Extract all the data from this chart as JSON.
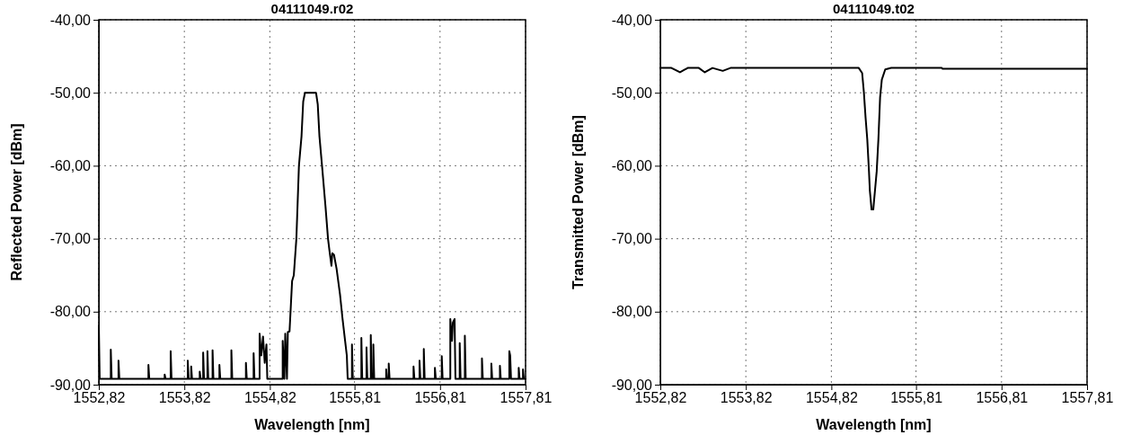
{
  "chart_data": [
    {
      "type": "line",
      "title": "04111049.r02",
      "xlabel": "Wavelength [nm]",
      "ylabel": "Reflected Power [dBm]",
      "color": "#000000",
      "grid": true,
      "xlim": [
        1552.82,
        1557.81
      ],
      "ylim": [
        -90,
        -40
      ],
      "xticks": [
        {
          "value": 1552.82,
          "label": "1552,82"
        },
        {
          "value": 1553.82,
          "label": "1553,82"
        },
        {
          "value": 1554.82,
          "label": "1554,82"
        },
        {
          "value": 1555.81,
          "label": "1555,81"
        },
        {
          "value": 1556.81,
          "label": "1556,81"
        },
        {
          "value": 1557.81,
          "label": "1557,81"
        }
      ],
      "yticks": [
        {
          "value": -90,
          "label": "-90,00"
        },
        {
          "value": -80,
          "label": "-80,00"
        },
        {
          "value": -70,
          "label": "-70,00"
        },
        {
          "value": -60,
          "label": "-60,00"
        },
        {
          "value": -50,
          "label": "-50,00"
        },
        {
          "value": -40,
          "label": "-40,00"
        }
      ],
      "x": [
        1552.82,
        1552.83,
        1552.96,
        1552.96,
        1552.97,
        1553.05,
        1553.05,
        1553.06,
        1553.4,
        1553.4,
        1553.41,
        1553.59,
        1553.59,
        1553.6,
        1553.66,
        1553.66,
        1553.67,
        1553.86,
        1553.86,
        1553.87,
        1553.9,
        1553.9,
        1553.91,
        1554.0,
        1554.0,
        1554.01,
        1554.04,
        1554.04,
        1554.05,
        1554.09,
        1554.09,
        1554.1,
        1554.15,
        1554.15,
        1554.16,
        1554.23,
        1554.23,
        1554.24,
        1554.37,
        1554.37,
        1554.38,
        1554.54,
        1554.54,
        1554.55,
        1554.63,
        1554.63,
        1554.64,
        1554.7,
        1554.7,
        1554.72,
        1554.74,
        1554.76,
        1554.78,
        1554.79,
        1554.97,
        1554.97,
        1554.99,
        1555.0,
        1555.02,
        1555.03,
        1555.05,
        1555.08,
        1555.1,
        1555.13,
        1555.16,
        1555.19,
        1555.21,
        1555.23,
        1555.36,
        1555.38,
        1555.4,
        1555.43,
        1555.47,
        1555.5,
        1555.52,
        1555.54,
        1555.55,
        1555.57,
        1555.6,
        1555.64,
        1555.67,
        1555.7,
        1555.72,
        1555.73,
        1555.78,
        1555.78,
        1555.79,
        1555.89,
        1555.89,
        1555.9,
        1555.95,
        1555.95,
        1555.96,
        1556.0,
        1556.0,
        1556.01,
        1556.03,
        1556.03,
        1556.04,
        1556.18,
        1556.18,
        1556.19,
        1556.21,
        1556.21,
        1556.22,
        1556.5,
        1556.5,
        1556.51,
        1556.57,
        1556.57,
        1556.58,
        1556.62,
        1556.62,
        1556.63,
        1556.75,
        1556.75,
        1556.76,
        1556.83,
        1556.83,
        1556.84,
        1556.93,
        1556.93,
        1556.95,
        1556.96,
        1556.98,
        1556.99,
        1557.04,
        1557.04,
        1557.05,
        1557.1,
        1557.1,
        1557.11,
        1557.3,
        1557.3,
        1557.31,
        1557.41,
        1557.41,
        1557.42,
        1557.51,
        1557.51,
        1557.52,
        1557.62,
        1557.62,
        1557.63,
        1557.64,
        1557.73,
        1557.73,
        1557.74,
        1557.78,
        1557.78,
        1557.79,
        1557.81
      ],
      "values": [
        -81.9,
        -89.2,
        -89.2,
        -85.2,
        -89.2,
        -89.2,
        -86.7,
        -89.2,
        -89.2,
        -87.3,
        -89.2,
        -89.2,
        -88.6,
        -89.2,
        -89.2,
        -85.4,
        -89.2,
        -89.2,
        -86.7,
        -89.2,
        -89.2,
        -87.5,
        -89.2,
        -89.2,
        -88.2,
        -89.2,
        -89.2,
        -85.6,
        -89.2,
        -89.2,
        -85.4,
        -89.2,
        -89.2,
        -85.3,
        -89.2,
        -89.2,
        -87.3,
        -89.2,
        -89.2,
        -85.3,
        -89.2,
        -89.2,
        -87.0,
        -89.2,
        -89.2,
        -85.7,
        -89.2,
        -89.2,
        -83.0,
        -86.0,
        -83.4,
        -87.0,
        -84.5,
        -89.2,
        -89.2,
        -84.0,
        -89.2,
        -83.0,
        -89.2,
        -82.8,
        -82.7,
        -75.8,
        -75.0,
        -70.0,
        -60.0,
        -56.0,
        -51.2,
        -50.0,
        -50.0,
        -51.6,
        -56.0,
        -60.0,
        -65.5,
        -70.0,
        -71.9,
        -73.7,
        -72.0,
        -72.2,
        -74.1,
        -77.6,
        -81.0,
        -84.0,
        -86.0,
        -89.2,
        -89.2,
        -84.5,
        -89.2,
        -89.2,
        -83.6,
        -89.2,
        -89.2,
        -84.9,
        -89.2,
        -89.2,
        -83.2,
        -89.2,
        -89.2,
        -84.5,
        -89.2,
        -89.2,
        -87.9,
        -89.2,
        -89.2,
        -87.1,
        -89.2,
        -89.2,
        -87.5,
        -89.2,
        -89.2,
        -86.7,
        -89.2,
        -89.2,
        -85.1,
        -89.2,
        -89.2,
        -87.7,
        -89.2,
        -89.2,
        -86.1,
        -89.2,
        -89.2,
        -81.0,
        -84.0,
        -81.5,
        -81.0,
        -89.2,
        -89.2,
        -84.3,
        -89.2,
        -89.2,
        -83.3,
        -89.2,
        -89.2,
        -86.4,
        -89.2,
        -89.2,
        -87.1,
        -89.2,
        -89.2,
        -87.4,
        -89.2,
        -89.2,
        -85.4,
        -86.0,
        -89.2,
        -89.2,
        -87.7,
        -89.2,
        -89.2,
        -87.9,
        -89.2,
        -89.2
      ]
    },
    {
      "type": "line",
      "title": "04111049.t02",
      "xlabel": "Wavelength [nm]",
      "ylabel": "Transmitted Power [dBm]",
      "color": "#000000",
      "grid": true,
      "xlim": [
        1552.82,
        1557.81
      ],
      "ylim": [
        -90,
        -40
      ],
      "xticks": [
        {
          "value": 1552.82,
          "label": "1552,82"
        },
        {
          "value": 1553.82,
          "label": "1553,82"
        },
        {
          "value": 1554.82,
          "label": "1554,82"
        },
        {
          "value": 1555.81,
          "label": "1555,81"
        },
        {
          "value": 1556.81,
          "label": "1556,81"
        },
        {
          "value": 1557.81,
          "label": "1557,81"
        }
      ],
      "yticks": [
        {
          "value": -90,
          "label": "-90,00"
        },
        {
          "value": -80,
          "label": "-80,00"
        },
        {
          "value": -70,
          "label": "-70,00"
        },
        {
          "value": -60,
          "label": "-60,00"
        },
        {
          "value": -50,
          "label": "-50,00"
        },
        {
          "value": -40,
          "label": "-40,00"
        }
      ],
      "x": [
        1552.82,
        1552.95,
        1553.05,
        1553.14,
        1553.27,
        1553.34,
        1553.43,
        1553.55,
        1553.64,
        1553.84,
        1555.14,
        1555.18,
        1555.2,
        1555.22,
        1555.24,
        1555.26,
        1555.27,
        1555.29,
        1555.31,
        1555.33,
        1555.35,
        1555.37,
        1555.39,
        1555.41,
        1555.45,
        1555.52,
        1556.11,
        1556.12,
        1557.81
      ],
      "values": [
        -46.6,
        -46.6,
        -47.2,
        -46.6,
        -46.6,
        -47.2,
        -46.6,
        -47.0,
        -46.6,
        -46.6,
        -46.6,
        -47.3,
        -49.9,
        -53.4,
        -56.4,
        -60.8,
        -63.4,
        -66.0,
        -66.0,
        -63.4,
        -60.8,
        -56.4,
        -50.6,
        -48.2,
        -46.8,
        -46.6,
        -46.6,
        -46.7,
        -46.7
      ]
    }
  ]
}
